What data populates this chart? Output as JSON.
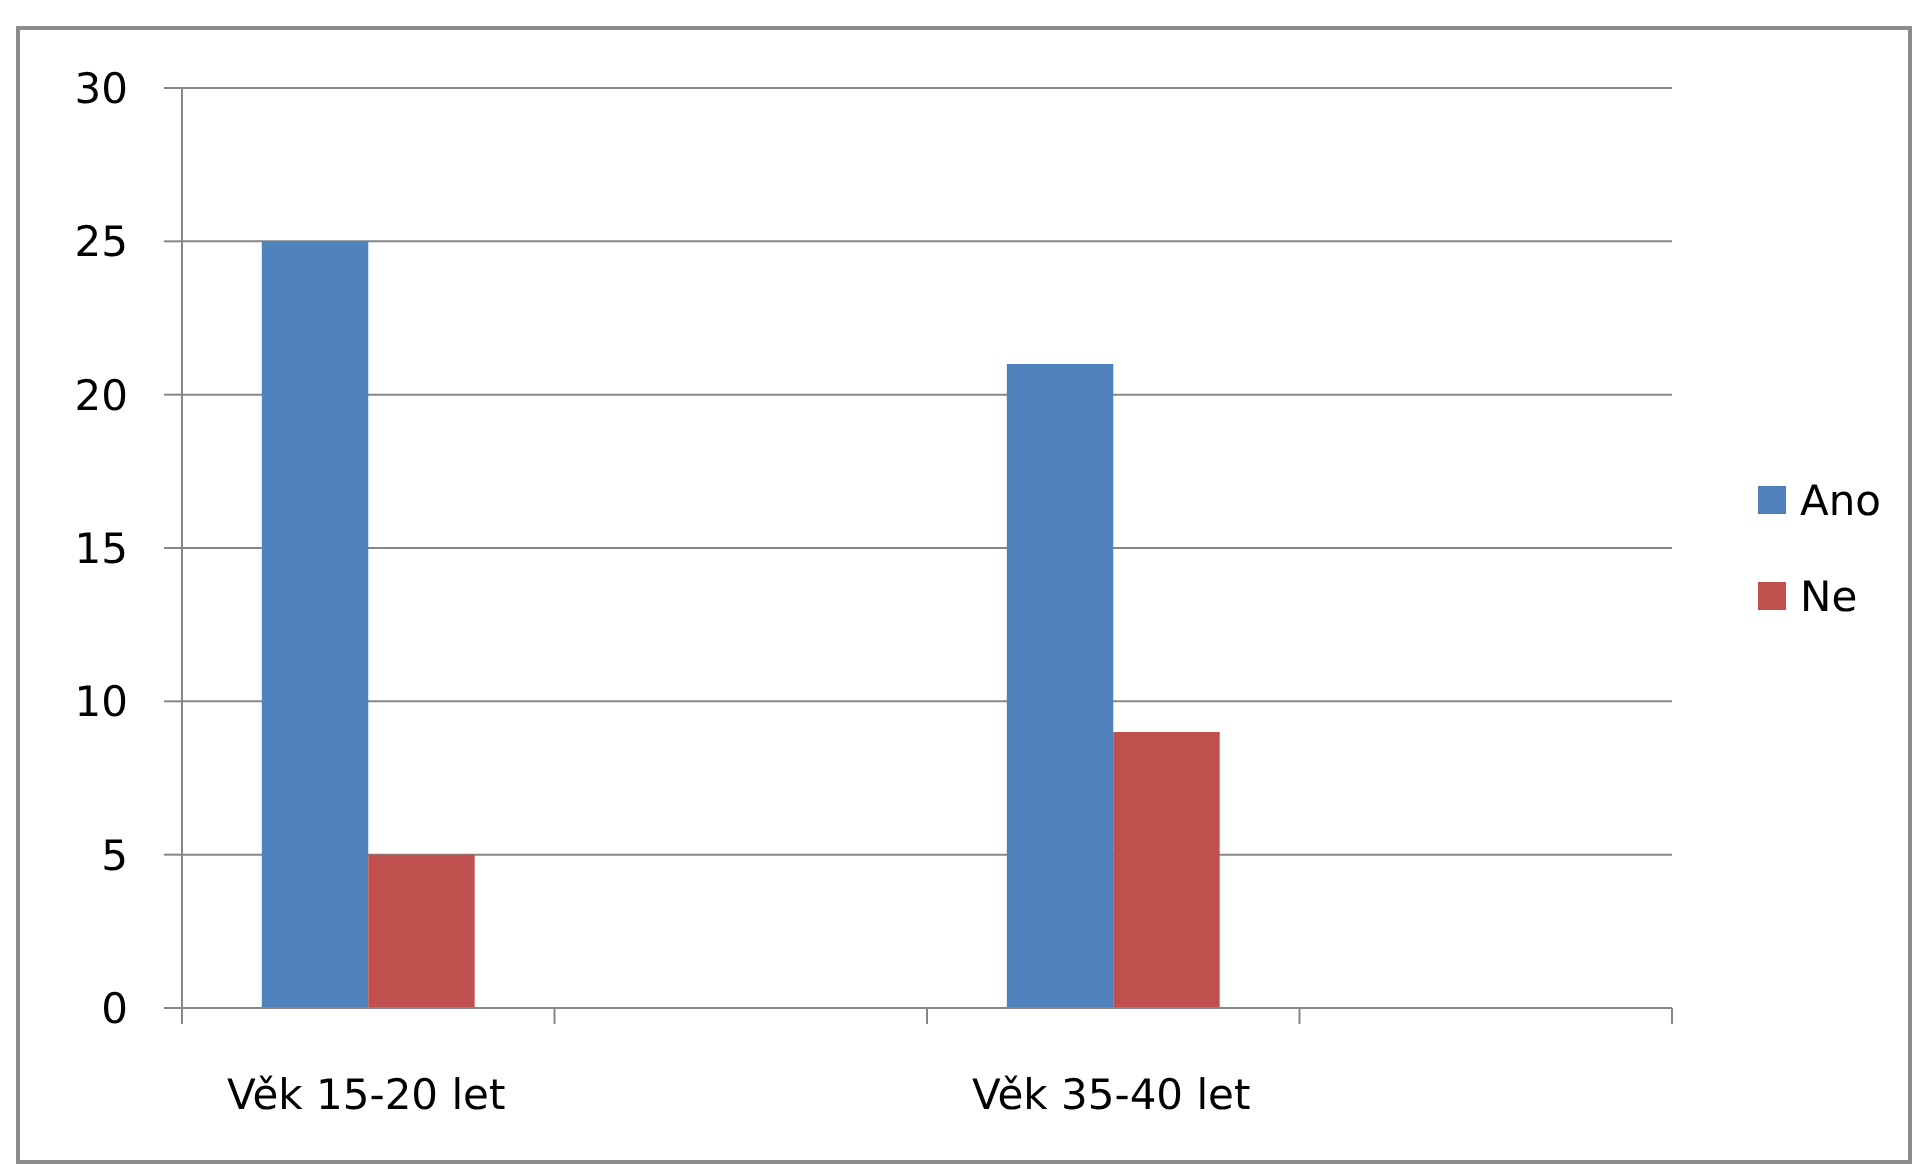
{
  "chart_data": {
    "type": "bar",
    "categories": [
      "Věk 15-20 let",
      null,
      "Věk 35-40 let",
      null
    ],
    "series": [
      {
        "name": "Ano",
        "color": "#4f81bd",
        "values": [
          25,
          null,
          21,
          null
        ]
      },
      {
        "name": "Ne",
        "color": "#c0504d",
        "values": [
          5,
          null,
          9,
          null
        ]
      }
    ],
    "ylim": [
      0,
      30
    ],
    "yticks": [
      0,
      5,
      10,
      15,
      20,
      25,
      30
    ],
    "grid": "y",
    "legend": "right"
  }
}
